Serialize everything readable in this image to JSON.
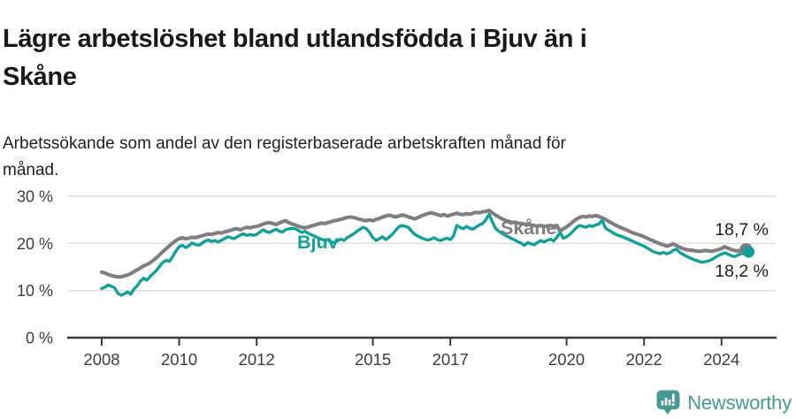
{
  "header": {
    "title_lines": [
      "Lägre arbetslöshet bland utlandsfödda i Bjuv än i",
      "Skåne"
    ],
    "subtitle_lines": [
      "Arbetssökande som andel av den registerbaserade arbetskraften månad för",
      "månad."
    ]
  },
  "chart_data": {
    "type": "line",
    "title": "Lägre arbetslöshet bland utlandsfödda i Bjuv än i Skåne",
    "subtitle": "Arbetssökande som andel av den registerbaserade arbetskraften månad för månad.",
    "frequency": "monthly",
    "x_start": "2008-01",
    "x_end": "2024-09",
    "ylim": [
      0,
      30
    ],
    "grid": "horizontal",
    "legend": "inline-labels",
    "yticks": [
      {
        "value": 0,
        "label": "0 %"
      },
      {
        "value": 10,
        "label": "10 %"
      },
      {
        "value": 20,
        "label": "20 %"
      },
      {
        "value": 30,
        "label": "30 %"
      }
    ],
    "xticks": [
      2008,
      2010,
      2012,
      2015,
      2017,
      2020,
      2022,
      2024
    ],
    "series": [
      {
        "name": "Skåne",
        "color": "#807E83",
        "end_label": "18,7 %",
        "end_value": 18.7,
        "values": [
          13.9,
          13.7,
          13.4,
          13.2,
          13.0,
          12.9,
          12.9,
          13.1,
          13.3,
          13.6,
          14.0,
          14.4,
          14.8,
          15.2,
          15.5,
          15.9,
          16.4,
          17.0,
          17.6,
          18.3,
          18.9,
          19.5,
          20.1,
          20.6,
          21.0,
          21.2,
          21.0,
          21.1,
          21.3,
          21.2,
          21.4,
          21.6,
          21.8,
          22.0,
          21.9,
          22.1,
          22.3,
          22.2,
          22.4,
          22.6,
          22.8,
          23.0,
          23.1,
          22.9,
          23.2,
          23.4,
          23.3,
          23.5,
          23.6,
          23.8,
          24.1,
          24.3,
          24.4,
          24.2,
          24.0,
          24.3,
          24.6,
          24.8,
          24.4,
          24.1,
          23.9,
          23.6,
          23.4,
          23.3,
          23.5,
          23.7,
          23.9,
          24.1,
          24.3,
          24.2,
          24.4,
          24.6,
          24.8,
          24.9,
          25.1,
          25.3,
          25.5,
          25.6,
          25.5,
          25.3,
          25.1,
          24.9,
          24.8,
          25.0,
          24.8,
          25.1,
          25.3,
          25.6,
          25.8,
          26.0,
          25.8,
          25.6,
          25.8,
          26.0,
          25.9,
          25.6,
          25.4,
          25.2,
          25.5,
          25.8,
          26.1,
          26.3,
          26.5,
          26.3,
          26.1,
          25.9,
          26.1,
          25.8,
          26.0,
          26.2,
          26.4,
          26.2,
          26.1,
          26.3,
          26.2,
          26.4,
          26.6,
          26.5,
          26.7,
          26.8,
          27.0,
          26.5,
          26.0,
          25.6,
          25.2,
          24.9,
          24.7,
          24.5,
          24.4,
          24.3,
          24.2,
          24.1,
          24.0,
          23.9,
          23.8,
          23.7,
          23.8,
          23.6,
          23.7,
          23.8,
          23.6,
          23.8,
          22.6,
          23.1,
          23.5,
          24.0,
          24.6,
          25.1,
          25.5,
          25.7,
          25.6,
          25.8,
          25.7,
          25.9,
          25.7,
          25.4,
          25.1,
          24.7,
          24.3,
          23.9,
          23.6,
          23.3,
          23.0,
          22.7,
          22.4,
          22.1,
          21.9,
          21.7,
          21.4,
          21.1,
          20.8,
          20.5,
          20.2,
          19.9,
          19.7,
          19.4,
          19.6,
          19.9,
          19.6,
          19.2,
          18.9,
          18.7,
          18.6,
          18.5,
          18.4,
          18.3,
          18.4,
          18.5,
          18.4,
          18.3,
          18.5,
          18.7,
          18.9,
          19.3,
          19.0,
          18.7,
          18.5,
          18.4,
          18.5,
          18.6,
          18.7
        ]
      },
      {
        "name": "Bjuv",
        "color": "#12A19A",
        "end_label": "18,2 %",
        "end_value": 18.2,
        "values": [
          10.4,
          10.7,
          11.2,
          10.9,
          10.6,
          9.4,
          9.0,
          9.3,
          9.7,
          9.2,
          10.3,
          11.0,
          12.0,
          12.6,
          12.2,
          13.0,
          13.6,
          14.3,
          15.2,
          16.0,
          16.4,
          16.2,
          17.2,
          18.4,
          19.3,
          19.6,
          19.1,
          19.5,
          20.1,
          19.8,
          19.6,
          20.0,
          20.5,
          20.7,
          20.4,
          20.6,
          20.3,
          20.6,
          21.0,
          21.4,
          21.2,
          21.0,
          21.4,
          21.8,
          22.0,
          21.7,
          21.9,
          21.7,
          21.9,
          22.4,
          22.9,
          22.5,
          22.3,
          22.7,
          23.0,
          22.6,
          22.4,
          22.9,
          23.1,
          23.2,
          23.1,
          22.7,
          22.3,
          22.6,
          22.1,
          21.8,
          21.5,
          21.2,
          20.9,
          20.6,
          20.8,
          20.3,
          20.2,
          20.5,
          20.9,
          20.6,
          21.2,
          21.6,
          22.0,
          22.5,
          23.0,
          23.4,
          23.1,
          22.3,
          21.2,
          20.6,
          21.0,
          21.4,
          20.8,
          21.3,
          21.9,
          22.7,
          23.5,
          23.8,
          23.6,
          23.4,
          22.6,
          21.9,
          21.5,
          21.2,
          20.9,
          20.7,
          20.9,
          21.2,
          20.8,
          20.6,
          20.9,
          21.1,
          20.8,
          21.6,
          23.8,
          23.4,
          23.1,
          23.6,
          23.2,
          23.0,
          23.5,
          23.9,
          24.2,
          25.0,
          26.2,
          24.6,
          23.2,
          22.6,
          22.1,
          21.7,
          21.4,
          21.0,
          20.7,
          20.3,
          20.0,
          19.6,
          20.2,
          19.9,
          19.7,
          20.2,
          20.6,
          20.3,
          20.6,
          20.9,
          20.5,
          21.3,
          22.3,
          21.1,
          21.4,
          21.9,
          22.6,
          23.3,
          23.8,
          23.6,
          23.4,
          23.8,
          23.6,
          23.9,
          24.1,
          24.9,
          23.3,
          22.8,
          22.4,
          22.0,
          21.7,
          21.5,
          21.2,
          20.9,
          20.6,
          20.3,
          20.0,
          19.7,
          19.4,
          19.0,
          18.6,
          18.2,
          18.0,
          17.8,
          18.1,
          17.8,
          18.0,
          18.5,
          18.8,
          18.1,
          17.7,
          17.3,
          17.0,
          16.7,
          16.4,
          16.2,
          16.0,
          16.1,
          16.3,
          16.6,
          17.0,
          17.4,
          17.7,
          18.0,
          17.7,
          17.4,
          17.2,
          17.5,
          17.8,
          18.0,
          18.2
        ]
      }
    ]
  },
  "footer": {
    "brand": "Newsworthy",
    "brand_color": "#459A93"
  }
}
